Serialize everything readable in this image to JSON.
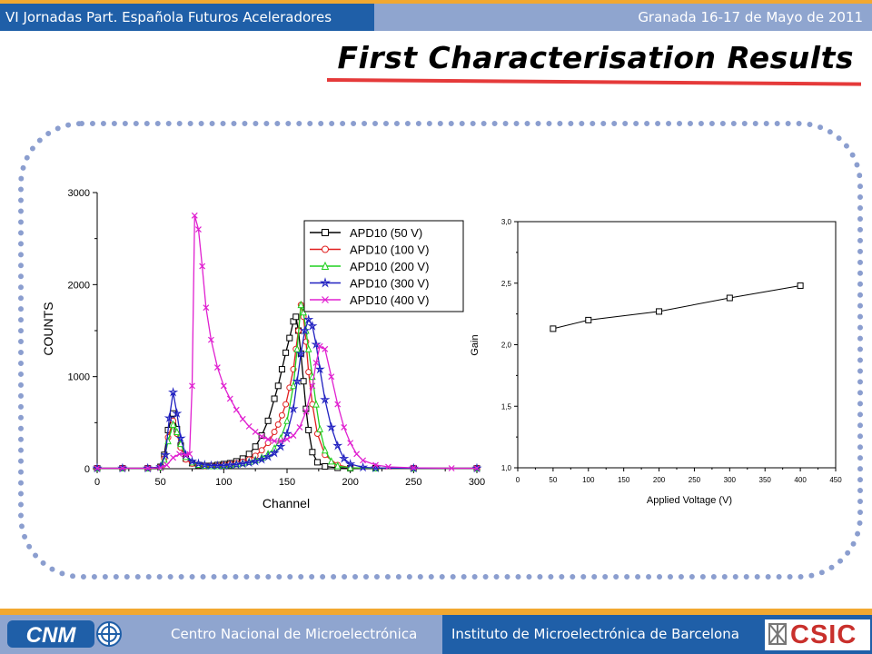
{
  "header": {
    "left_text": "VI Jornadas Part. Española Futuros Aceleradores",
    "right_text": "Granada 16-17 de Mayo de 2011"
  },
  "slide": {
    "title": "First Characterisation Results"
  },
  "footer": {
    "left_text": "Centro Nacional de Microelectrónica",
    "right_text": "Instituto de Microelectrónica de Barcelona",
    "logo_left": "CNM",
    "logo_right": "CSIC"
  },
  "colors": {
    "header_dark": "#1f5fa8",
    "header_light": "#8fa5cf",
    "accent_orange": "#f2a830",
    "underline_red": "#e53a3a",
    "frame": "#8b9ecf"
  },
  "chart_data": [
    {
      "type": "line",
      "xlabel": "Channel",
      "ylabel": "COUNTS",
      "xlim": [
        0,
        300
      ],
      "ylim": [
        0,
        3000
      ],
      "xticks": [
        0,
        50,
        100,
        150,
        200,
        250,
        300
      ],
      "yticks": [
        0,
        1000,
        2000,
        3000
      ],
      "legend_position": "top-right",
      "series": [
        {
          "name": "APD10 (50 V)",
          "color": "#000000",
          "marker": "square",
          "x": [
            0,
            20,
            40,
            50,
            53,
            56,
            60,
            63,
            66,
            70,
            75,
            80,
            85,
            90,
            95,
            100,
            105,
            110,
            115,
            120,
            125,
            130,
            135,
            140,
            143,
            146,
            149,
            152,
            155,
            157,
            159,
            161,
            163,
            165,
            167,
            170,
            174,
            180,
            190,
            200,
            220,
            250,
            300
          ],
          "y": [
            5,
            5,
            5,
            20,
            150,
            420,
            600,
            430,
            250,
            110,
            60,
            40,
            30,
            30,
            40,
            50,
            60,
            80,
            110,
            160,
            240,
            360,
            520,
            760,
            900,
            1080,
            1260,
            1420,
            1600,
            1650,
            1500,
            1250,
            950,
            650,
            420,
            180,
            70,
            25,
            10,
            5,
            5,
            5,
            5
          ]
        },
        {
          "name": "APD10 (100 V)",
          "color": "#e02020",
          "marker": "circle",
          "x": [
            0,
            20,
            40,
            50,
            53,
            56,
            60,
            63,
            66,
            70,
            75,
            80,
            85,
            90,
            95,
            100,
            105,
            110,
            115,
            120,
            125,
            130,
            135,
            140,
            143,
            146,
            149,
            152,
            155,
            157,
            159,
            161,
            163,
            165,
            167,
            170,
            174,
            180,
            190,
            200,
            220,
            250,
            300
          ],
          "y": [
            5,
            5,
            5,
            15,
            110,
            340,
            520,
            380,
            230,
            100,
            55,
            40,
            30,
            28,
            30,
            40,
            50,
            60,
            75,
            100,
            140,
            200,
            280,
            400,
            480,
            580,
            700,
            880,
            1080,
            1300,
            1500,
            1780,
            1650,
            1380,
            1050,
            700,
            380,
            150,
            40,
            10,
            5,
            5,
            5
          ]
        },
        {
          "name": "APD10 (200 V)",
          "color": "#20d020",
          "marker": "triangle",
          "x": [
            0,
            20,
            40,
            50,
            53,
            56,
            60,
            63,
            66,
            70,
            75,
            80,
            85,
            90,
            95,
            100,
            105,
            110,
            115,
            120,
            125,
            130,
            135,
            140,
            145,
            150,
            155,
            158,
            161,
            163,
            165,
            167,
            170,
            173,
            176,
            180,
            185,
            190,
            200,
            220,
            250,
            300
          ],
          "y": [
            5,
            5,
            5,
            15,
            100,
            300,
            480,
            400,
            270,
            130,
            70,
            45,
            35,
            30,
            30,
            35,
            40,
            50,
            60,
            75,
            95,
            120,
            160,
            220,
            330,
            520,
            900,
            1300,
            1780,
            1700,
            1500,
            1300,
            1000,
            700,
            430,
            200,
            80,
            30,
            10,
            5,
            5,
            5
          ]
        },
        {
          "name": "APD10 (300 V)",
          "color": "#2020c0",
          "marker": "star",
          "x": [
            0,
            20,
            40,
            50,
            54,
            57,
            60,
            63,
            66,
            70,
            75,
            80,
            85,
            90,
            95,
            100,
            105,
            110,
            115,
            120,
            125,
            130,
            135,
            140,
            145,
            150,
            155,
            158,
            161,
            164,
            167,
            170,
            173,
            176,
            180,
            185,
            190,
            195,
            200,
            210,
            220,
            250,
            300
          ],
          "y": [
            5,
            5,
            5,
            20,
            150,
            550,
            830,
            600,
            330,
            150,
            80,
            55,
            40,
            35,
            33,
            35,
            40,
            45,
            55,
            65,
            80,
            100,
            130,
            170,
            240,
            380,
            650,
            950,
            1250,
            1500,
            1620,
            1550,
            1350,
            1080,
            750,
            450,
            250,
            110,
            50,
            15,
            8,
            5,
            5
          ]
        },
        {
          "name": "APD10 (400 V)",
          "color": "#e020d0",
          "marker": "x",
          "x": [
            0,
            20,
            40,
            50,
            55,
            60,
            65,
            70,
            73,
            75,
            77,
            80,
            83,
            86,
            90,
            95,
            100,
            105,
            110,
            115,
            120,
            125,
            130,
            135,
            140,
            145,
            150,
            155,
            160,
            165,
            170,
            173,
            176,
            180,
            185,
            190,
            195,
            200,
            205,
            210,
            220,
            230,
            250,
            280,
            300
          ],
          "y": [
            5,
            5,
            5,
            10,
            40,
            120,
            160,
            150,
            160,
            900,
            2750,
            2600,
            2200,
            1750,
            1400,
            1100,
            900,
            760,
            640,
            540,
            460,
            400,
            350,
            320,
            300,
            300,
            320,
            360,
            450,
            620,
            900,
            1150,
            1330,
            1300,
            1000,
            700,
            450,
            280,
            160,
            90,
            40,
            20,
            10,
            5,
            5
          ]
        }
      ]
    },
    {
      "type": "line",
      "xlabel": "Applied Voltage (V)",
      "ylabel": "Gain",
      "xlim": [
        0,
        450
      ],
      "ylim": [
        1.0,
        3.0
      ],
      "xticks": [
        0,
        50,
        100,
        150,
        200,
        250,
        300,
        350,
        400,
        450
      ],
      "yticks": [
        "1,0",
        "1,5",
        "2,0",
        "2,5",
        "3,0"
      ],
      "series": [
        {
          "marker": "square",
          "color": "#000000",
          "x": [
            50,
            100,
            200,
            300,
            400
          ],
          "y": [
            2.13,
            2.2,
            2.27,
            2.38,
            2.48
          ]
        }
      ]
    }
  ]
}
